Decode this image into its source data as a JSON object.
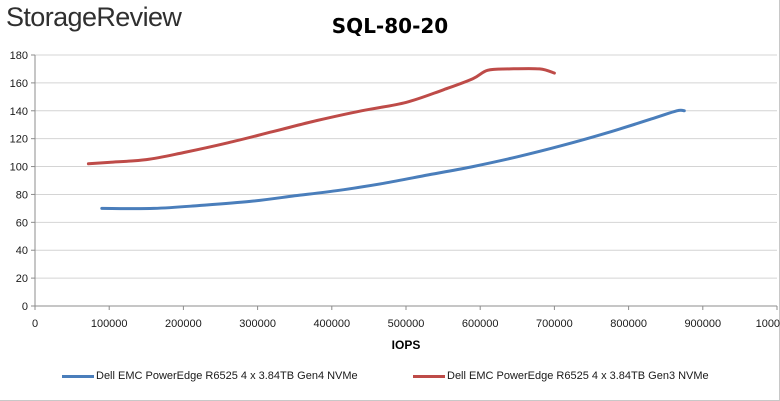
{
  "brand": "StorageReview",
  "chart_data": {
    "type": "line",
    "title": "SQL-80-20",
    "xlabel": "IOPS",
    "ylabel": "",
    "xlim": [
      0,
      1000000
    ],
    "ylim": [
      0,
      180
    ],
    "x_ticks": [
      0,
      100000,
      200000,
      300000,
      400000,
      500000,
      600000,
      700000,
      800000,
      900000,
      1000000
    ],
    "y_ticks": [
      0,
      20,
      40,
      60,
      80,
      100,
      120,
      140,
      160,
      180
    ],
    "x_tick_labels": [
      "0",
      "100000",
      "200000",
      "300000",
      "400000",
      "500000",
      "600000",
      "700000",
      "800000",
      "900000",
      "1000000"
    ],
    "y_tick_labels": [
      "0",
      "20",
      "40",
      "60",
      "80",
      "100",
      "120",
      "140",
      "160",
      "180"
    ],
    "grid": "horizontal",
    "legend": "bottom",
    "series": [
      {
        "name": "Dell EMC PowerEdge R6525 4 x 3.84TB Gen4 NVMe",
        "color": "#4a7ebb",
        "x": [
          90000,
          160000,
          220000,
          290000,
          350000,
          410000,
          470000,
          530000,
          590000,
          650000,
          710000,
          770000,
          830000,
          865000,
          875000
        ],
        "y": [
          70,
          70,
          72,
          75,
          79,
          83,
          88,
          94,
          100,
          107,
          115,
          124,
          134,
          140,
          140
        ]
      },
      {
        "name": "Dell EMC PowerEdge R6525 4 x 3.84TB Gen3 NVMe",
        "color": "#be4b48",
        "x": [
          72000,
          100000,
          150000,
          200000,
          260000,
          320000,
          380000,
          440000,
          500000,
          550000,
          590000,
          610000,
          640000,
          680000,
          700000
        ],
        "y": [
          102,
          103,
          105,
          110,
          117,
          125,
          133,
          140,
          146,
          155,
          163,
          169,
          170,
          170,
          167
        ]
      }
    ]
  }
}
